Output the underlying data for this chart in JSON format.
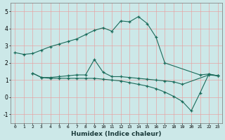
{
  "title": "",
  "xlabel": "Humidex (Indice chaleur)",
  "bg_color": "#cce8e8",
  "line_color": "#1a6b5a",
  "grid_color_v": "#e8a0a0",
  "grid_color_h": "#e8a0a0",
  "xlim": [
    -0.5,
    23.5
  ],
  "ylim": [
    -1.5,
    5.5
  ],
  "yticks": [
    -1,
    0,
    1,
    2,
    3,
    4,
    5
  ],
  "xticks": [
    0,
    1,
    2,
    3,
    4,
    5,
    6,
    7,
    8,
    9,
    10,
    11,
    12,
    13,
    14,
    15,
    16,
    17,
    18,
    19,
    20,
    21,
    22,
    23
  ],
  "series": [
    {
      "x": [
        0,
        1,
        2,
        3,
        4,
        5,
        6,
        7,
        8,
        9,
        10,
        11,
        12,
        13,
        14,
        15,
        16,
        17,
        21,
        22,
        23
      ],
      "y": [
        2.6,
        2.5,
        2.55,
        2.75,
        2.95,
        3.1,
        3.25,
        3.4,
        3.65,
        3.9,
        4.05,
        3.85,
        4.45,
        4.4,
        4.7,
        4.3,
        3.5,
        2.0,
        1.3,
        1.35,
        1.25
      ]
    },
    {
      "x": [
        2,
        3,
        4,
        5,
        6,
        7,
        8,
        9,
        10,
        11,
        12,
        13,
        14,
        15,
        16,
        17,
        18,
        19,
        22,
        23
      ],
      "y": [
        1.4,
        1.15,
        1.15,
        1.2,
        1.25,
        1.3,
        1.3,
        2.2,
        1.45,
        1.2,
        1.2,
        1.15,
        1.1,
        1.05,
        1.0,
        0.95,
        0.9,
        0.75,
        1.3,
        1.25
      ]
    },
    {
      "x": [
        2,
        3,
        4,
        5,
        6,
        7,
        8,
        9,
        10,
        11,
        12,
        13,
        14,
        15,
        16,
        17,
        18,
        19,
        20,
        21,
        22,
        23
      ],
      "y": [
        1.4,
        1.15,
        1.1,
        1.1,
        1.1,
        1.1,
        1.1,
        1.1,
        1.05,
        1.0,
        0.95,
        0.85,
        0.75,
        0.65,
        0.5,
        0.3,
        0.05,
        -0.25,
        -0.8,
        0.25,
        1.35,
        1.25
      ]
    }
  ]
}
